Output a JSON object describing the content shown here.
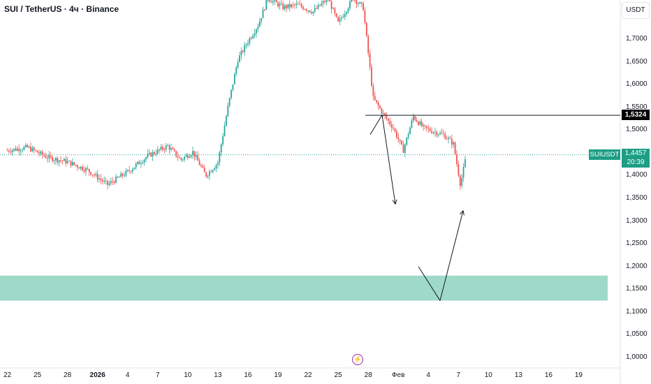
{
  "header": {
    "title": "SUI / TetherUS · 4ч · Binance",
    "currency": "USDT"
  },
  "colors": {
    "up": "#26a69a",
    "down": "#ef5350",
    "zone": "#9fdac9",
    "drawing": "#131722",
    "price_line": "#26a69a",
    "accent": "#1d9e84"
  },
  "markers": {
    "horizontal_line_label": "1,5324",
    "symbol_tag": "SUIUSDT",
    "last_price": "1,4457",
    "countdown": "20:39",
    "event_icon": "lightning-bolt-icon"
  },
  "chart_data": {
    "type": "candlestick",
    "y_ticks": [
      "1,7000",
      "1,6500",
      "1,6000",
      "1,5500",
      "1,5000",
      "1,4500",
      "1,4000",
      "1,3500",
      "1,3000",
      "1,2500",
      "1,2000",
      "1,1500",
      "1,1000",
      "1,0500",
      "1,0000"
    ],
    "x_ticks": [
      {
        "label": "22",
        "bold": false
      },
      {
        "label": "25",
        "bold": false
      },
      {
        "label": "28",
        "bold": false
      },
      {
        "label": "2026",
        "bold": true
      },
      {
        "label": "4",
        "bold": false
      },
      {
        "label": "7",
        "bold": false
      },
      {
        "label": "10",
        "bold": false
      },
      {
        "label": "13",
        "bold": false
      },
      {
        "label": "16",
        "bold": false
      },
      {
        "label": "19",
        "bold": false
      },
      {
        "label": "22",
        "bold": false
      },
      {
        "label": "25",
        "bold": false
      },
      {
        "label": "28",
        "bold": false
      },
      {
        "label": "Фев",
        "bold": false
      },
      {
        "label": "4",
        "bold": false
      },
      {
        "label": "7",
        "bold": false
      },
      {
        "label": "10",
        "bold": false
      },
      {
        "label": "13",
        "bold": false
      },
      {
        "label": "16",
        "bold": false
      },
      {
        "label": "19",
        "bold": false
      }
    ],
    "ylim": [
      0.98,
      1.78
    ],
    "last_price": 1.4457,
    "resistance_line": 1.5324,
    "zone": [
      1.125,
      1.18
    ],
    "projection_path": [
      [
        1.485,
        1.5324
      ],
      [
        1.347
      ]
    ],
    "projection_legs": [
      {
        "from": [
          "day_26.2",
          1.49
        ],
        "to": [
          "day_26.6",
          1.533
        ]
      },
      {
        "from": [
          "day_26.6",
          1.533
        ],
        "to": [
          "day_27.5",
          1.337
        ]
      },
      {
        "from": [
          "day_29.5",
          1.2
        ],
        "to": [
          "day_31.2",
          1.125
        ]
      },
      {
        "from": [
          "day_31.2",
          1.125
        ],
        "to": [
          "day_32.2",
          1.323
        ]
      }
    ],
    "series": [
      {
        "path_points": [
          [
            0,
            1.455
          ],
          [
            2,
            1.462
          ],
          [
            4,
            1.44
          ],
          [
            6,
            1.43
          ],
          [
            8,
            1.412
          ],
          [
            10,
            1.38
          ],
          [
            12,
            1.408
          ],
          [
            14,
            1.443
          ],
          [
            16,
            1.465
          ],
          [
            17.3,
            1.435
          ],
          [
            18.5,
            1.452
          ],
          [
            19.8,
            1.4
          ],
          [
            21,
            1.428
          ],
          [
            22,
            1.55
          ],
          [
            23,
            1.655
          ],
          [
            24,
            1.695
          ],
          [
            25,
            1.73
          ],
          [
            26,
            1.79
          ],
          [
            27.5,
            1.77
          ],
          [
            29,
            1.775
          ],
          [
            30.5,
            1.76
          ],
          [
            32,
            1.79
          ],
          [
            33,
            1.735
          ],
          [
            34.5,
            1.79
          ],
          [
            35.5,
            1.77
          ],
          [
            36.5,
            1.57
          ],
          [
            37.5,
            1.535
          ],
          [
            38.5,
            1.505
          ],
          [
            39.5,
            1.455
          ],
          [
            40.5,
            1.53
          ],
          [
            41.5,
            1.505
          ],
          [
            42.5,
            1.497
          ],
          [
            43.5,
            1.49
          ],
          [
            44.5,
            1.47
          ],
          [
            45.2,
            1.38
          ],
          [
            45.8,
            1.4457
          ]
        ]
      }
    ]
  }
}
